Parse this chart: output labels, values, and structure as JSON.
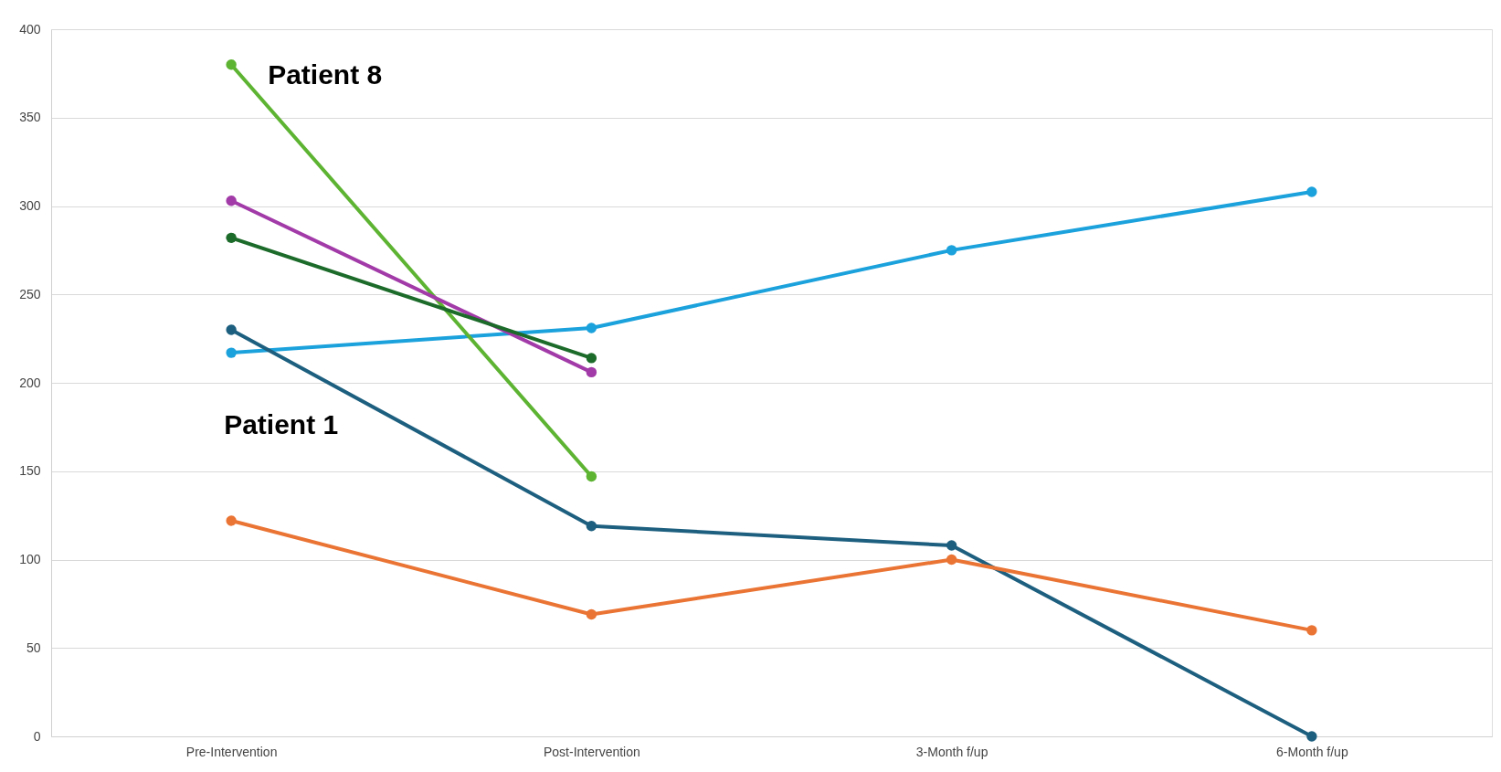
{
  "chart_data": {
    "type": "line",
    "categories": [
      "Pre-Intervention",
      "Post-Intervention",
      "3-Month f/up",
      "6-Month f/up"
    ],
    "series": [
      {
        "color": "#1ba1dc",
        "values": [
          217,
          231,
          275,
          308
        ]
      },
      {
        "color": "#1d5f7f",
        "values": [
          230,
          119,
          108,
          0
        ]
      },
      {
        "color": "#ea7434",
        "values": [
          122,
          69,
          100,
          60
        ]
      },
      {
        "color": "#5db332",
        "values": [
          380,
          147,
          null,
          null
        ]
      },
      {
        "color": "#a23aa8",
        "values": [
          303,
          206,
          null,
          null
        ]
      },
      {
        "color": "#1c6b2a",
        "values": [
          282,
          214,
          null,
          null
        ]
      }
    ],
    "ylim": [
      0,
      400
    ],
    "yticks": [
      0,
      50,
      100,
      150,
      200,
      250,
      300,
      350,
      400
    ],
    "grid": "y",
    "legend": false,
    "marker": "circle",
    "line_style": "solid",
    "annotations": [
      {
        "text": "Patient 8",
        "x": "Pre-Intervention",
        "y": 380
      },
      {
        "text": "Patient 1",
        "x": "Pre-Intervention",
        "y": 230
      }
    ]
  }
}
